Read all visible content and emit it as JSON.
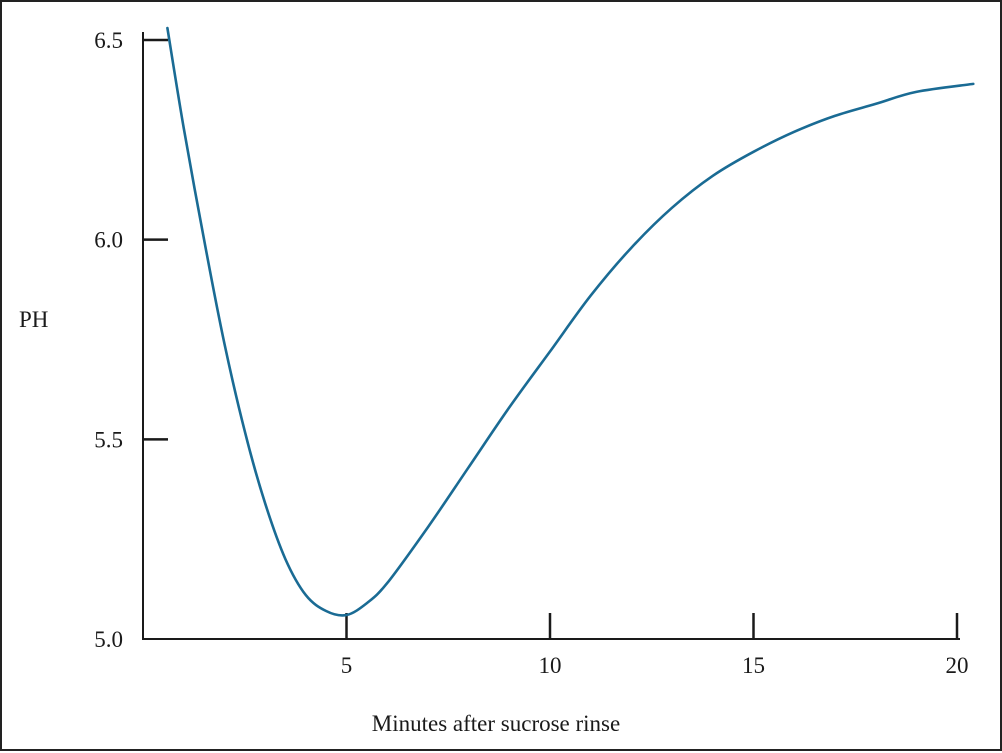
{
  "chart_data": {
    "type": "line",
    "title": "",
    "xlabel": "Minutes after sucrose rinse",
    "ylabel": "PH",
    "xlim": [
      0,
      20
    ],
    "ylim": [
      5.0,
      6.5
    ],
    "x_ticks": [
      5,
      10,
      15,
      20
    ],
    "x_tick_labels": [
      "5",
      "10",
      "15",
      "20"
    ],
    "y_ticks": [
      5.0,
      5.5,
      6.0,
      6.5
    ],
    "y_tick_labels": [
      "5.0",
      "5.5",
      "6.0",
      "6.5"
    ],
    "grid": false,
    "legend": "none",
    "series": [
      {
        "color": "#1a6b94",
        "x": [
          0.6,
          1,
          1.5,
          2,
          2.5,
          3,
          3.5,
          4,
          4.5,
          5,
          5.5,
          6,
          7,
          8,
          9,
          10,
          11,
          12,
          13,
          14,
          15,
          16,
          17,
          18,
          19,
          20.4
        ],
        "y": [
          6.53,
          6.28,
          6.0,
          5.74,
          5.52,
          5.34,
          5.2,
          5.11,
          5.07,
          5.06,
          5.09,
          5.14,
          5.28,
          5.43,
          5.58,
          5.72,
          5.86,
          5.98,
          6.08,
          6.16,
          6.22,
          6.27,
          6.31,
          6.34,
          6.37,
          6.39
        ]
      }
    ]
  }
}
